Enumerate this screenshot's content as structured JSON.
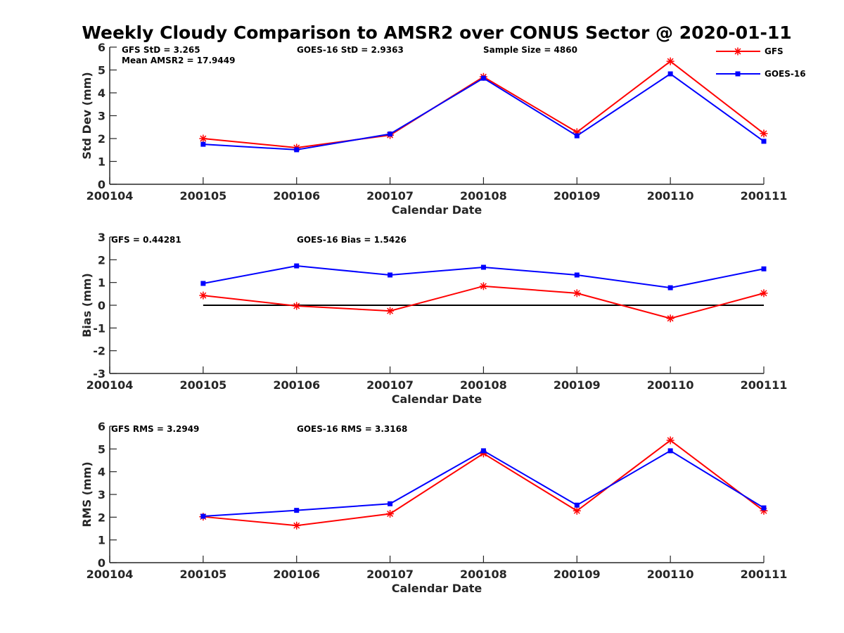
{
  "chart_data": [
    {
      "type": "line",
      "title": "Weekly Cloudy Comparison to AMSR2 over CONUS Sector @ 2020-01-11",
      "xlabel": "Calendar Date",
      "ylabel": "Std Dev (mm)",
      "x_ticks": [
        "200104",
        "200105",
        "200106",
        "200107",
        "200108",
        "200109",
        "200110",
        "200111"
      ],
      "x": [
        "200105",
        "200106",
        "200107",
        "200108",
        "200109",
        "200110",
        "200111"
      ],
      "ylim": [
        0,
        6
      ],
      "y_ticks": [
        "0",
        "1",
        "2",
        "3",
        "4",
        "5",
        "6"
      ],
      "grid": false,
      "series": [
        {
          "name": "GFS",
          "color": "#ff0000",
          "marker": "asterisk",
          "values": [
            2.0,
            1.6,
            2.15,
            4.7,
            2.28,
            5.38,
            2.22
          ]
        },
        {
          "name": "GOES-16",
          "color": "#0000ff",
          "marker": "square",
          "values": [
            1.75,
            1.51,
            2.2,
            4.64,
            2.12,
            4.83,
            1.88
          ]
        }
      ],
      "annotations": [
        "GFS StD = 3.265",
        "Mean AMSR2 = 17.9449",
        "GOES-16 StD = 2.9363",
        "Sample Size = 4860"
      ],
      "legend": {
        "placement": "top-right",
        "entries": [
          "GFS",
          "GOES-16"
        ]
      }
    },
    {
      "type": "line",
      "xlabel": "Calendar Date",
      "ylabel": "Bias (mm)",
      "x_ticks": [
        "200104",
        "200105",
        "200106",
        "200107",
        "200108",
        "200109",
        "200110",
        "200111"
      ],
      "x": [
        "200105",
        "200106",
        "200107",
        "200108",
        "200109",
        "200110",
        "200111"
      ],
      "ylim": [
        -3,
        3
      ],
      "y_ticks": [
        "-3",
        "-2",
        "-1",
        "0",
        "1",
        "2",
        "3"
      ],
      "grid": false,
      "reference_line": 0,
      "series": [
        {
          "name": "GFS",
          "color": "#ff0000",
          "marker": "asterisk",
          "values": [
            0.43,
            -0.03,
            -0.25,
            0.84,
            0.53,
            -0.58,
            0.53
          ]
        },
        {
          "name": "GOES-16",
          "color": "#0000ff",
          "marker": "square",
          "values": [
            0.96,
            1.73,
            1.33,
            1.67,
            1.33,
            0.77,
            1.6
          ]
        }
      ],
      "annotations": [
        "GFS = 0.44281",
        "GOES-16 Bias  = 1.5426"
      ]
    },
    {
      "type": "line",
      "xlabel": "Calendar Date",
      "ylabel": "RMS (mm)",
      "x_ticks": [
        "200104",
        "200105",
        "200106",
        "200107",
        "200108",
        "200109",
        "200110",
        "200111"
      ],
      "x": [
        "200105",
        "200106",
        "200107",
        "200108",
        "200109",
        "200110",
        "200111"
      ],
      "ylim": [
        0,
        6
      ],
      "y_ticks": [
        "0",
        "1",
        "2",
        "3",
        "4",
        "5",
        "6"
      ],
      "grid": false,
      "series": [
        {
          "name": "GFS",
          "color": "#ff0000",
          "marker": "asterisk",
          "values": [
            2.02,
            1.63,
            2.15,
            4.8,
            2.28,
            5.38,
            2.28
          ]
        },
        {
          "name": "GOES-16",
          "color": "#0000ff",
          "marker": "square",
          "values": [
            2.04,
            2.3,
            2.59,
            4.92,
            2.53,
            4.92,
            2.41
          ]
        }
      ],
      "annotations": [
        "GFS RMS = 3.2949",
        "GOES-16 RMS = 3.3168"
      ]
    }
  ]
}
